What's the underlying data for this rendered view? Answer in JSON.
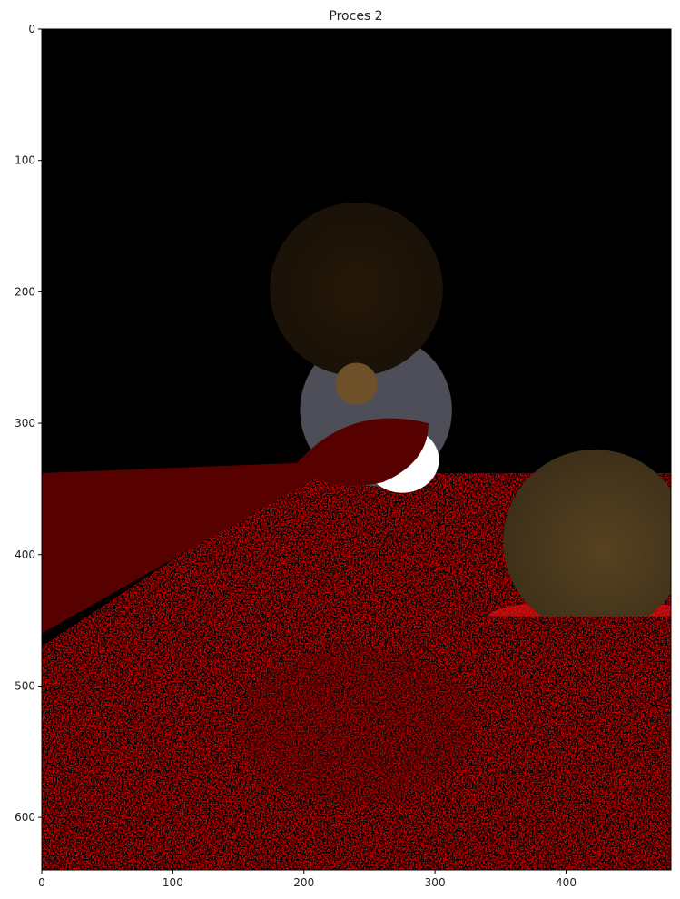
{
  "chart_data": {
    "type": "image",
    "title": "Proces 2",
    "xlim": [
      0,
      480
    ],
    "xticks": [
      0,
      100,
      200,
      300,
      400
    ],
    "ylim": [
      640,
      0
    ],
    "yticks": [
      0,
      100,
      200,
      300,
      400,
      500,
      600
    ]
  }
}
